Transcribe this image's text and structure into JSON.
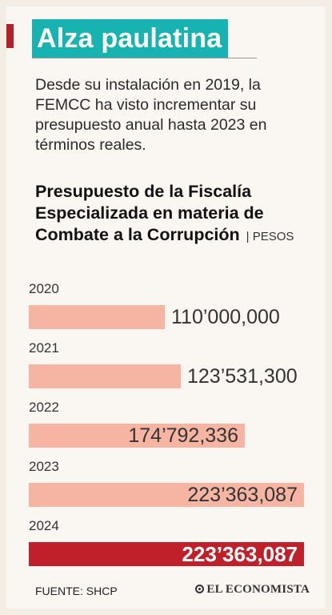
{
  "header": {
    "title": "Alza paulatina",
    "intro": "Desde su instalación en 2019, la FEMCC ha visto incrementar su presupuesto anual hasta 2023 en términos reales."
  },
  "chart_data": {
    "type": "bar",
    "orientation": "horizontal",
    "title": "Presupuesto de la Fiscalía Especializada en materia de Combate a la Corrupción",
    "unit": "| PESOS",
    "categories": [
      "2020",
      "2021",
      "2022",
      "2023",
      "2024"
    ],
    "values": [
      110000000,
      123531300,
      174792336,
      223363087,
      223363087
    ],
    "value_labels": [
      "110’000,000",
      "123’531,300",
      "174’792,336",
      "223’363,087",
      "223’363,087"
    ],
    "highlight_index": 4,
    "colors": {
      "bar": "#f6b5a2",
      "highlight": "#c0202a",
      "title_bg": "#17b3b0"
    }
  },
  "footer": {
    "source": "FUENTE: SHCP",
    "brand": "EL ECONOMISTA"
  }
}
